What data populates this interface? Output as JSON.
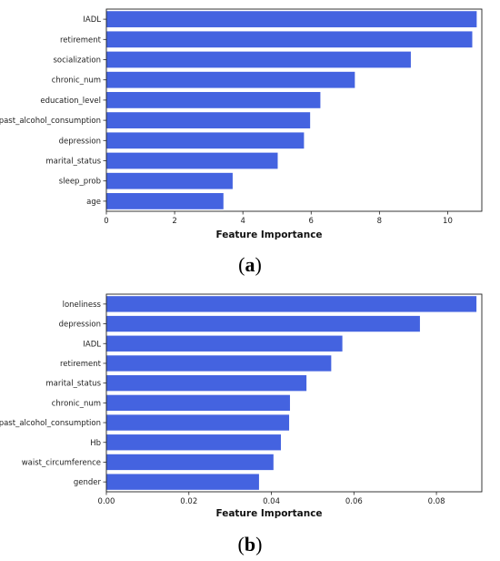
{
  "chart_data": [
    {
      "type": "bar",
      "orientation": "horizontal",
      "caption_letter": "a",
      "categories": [
        "IADL",
        "retirement",
        "socialization",
        "chronic_num",
        "education_level",
        "past_alcohol_consumption",
        "depression",
        "marital_status",
        "sleep_prob",
        "age"
      ],
      "values": [
        10.85,
        10.72,
        8.92,
        7.28,
        6.27,
        5.97,
        5.79,
        5.02,
        3.7,
        3.43
      ],
      "xlabel": "Feature Importance",
      "ylabel": "",
      "xlim": [
        0,
        11.0
      ],
      "xticks": [
        "0",
        "2",
        "4",
        "6",
        "8",
        "10"
      ],
      "xtick_values": [
        0,
        2,
        4,
        6,
        8,
        10
      ],
      "bar_color": "#4463e0",
      "grid": false
    },
    {
      "type": "bar",
      "orientation": "horizontal",
      "caption_letter": "b",
      "categories": [
        "loneliness",
        "depression",
        "IADL",
        "retirement",
        "marital_status",
        "chronic_num",
        "past_alcohol_consumption",
        "Hb",
        "waist_circumference",
        "gender"
      ],
      "values": [
        0.0897,
        0.076,
        0.0572,
        0.0545,
        0.0485,
        0.0445,
        0.0443,
        0.0423,
        0.0405,
        0.037
      ],
      "xlabel": "Feature Importance",
      "ylabel": "",
      "xlim": [
        0,
        0.091
      ],
      "xticks": [
        "0.00",
        "0.02",
        "0.04",
        "0.06",
        "0.08"
      ],
      "xtick_values": [
        0,
        0.02,
        0.04,
        0.06,
        0.08
      ],
      "bar_color": "#4463e0",
      "grid": false
    }
  ]
}
